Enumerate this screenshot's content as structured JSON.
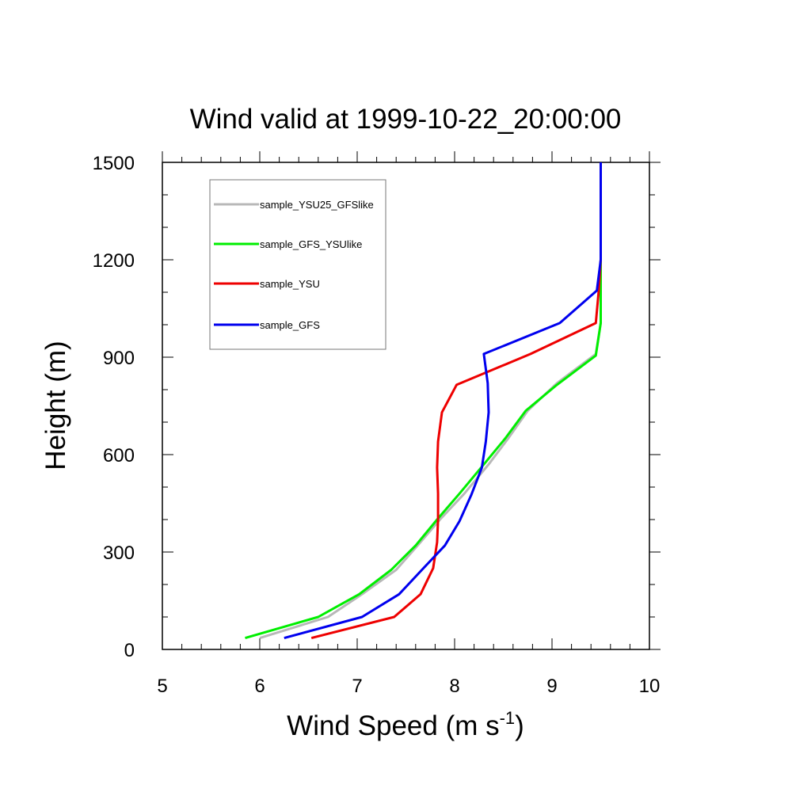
{
  "chart_data": {
    "type": "line",
    "title": "Wind valid at 1999-10-22_20:00:00",
    "xlabel": "Wind Speed (m s",
    "xlabel_sup": "-1",
    "xlabel_end": ")",
    "ylabel": "Height (m)",
    "xlim": [
      5,
      10
    ],
    "ylim": [
      0,
      1500
    ],
    "xticks": [
      "5",
      "6",
      "7",
      "8",
      "9",
      "10"
    ],
    "yticks": [
      "0",
      "300",
      "600",
      "900",
      "1200",
      "1500"
    ],
    "grid": false,
    "legend_position": "top-left",
    "series": [
      {
        "name": "sample_YSU25_GFSlike",
        "color": "#b8b8b8",
        "points": [
          [
            6.0,
            35
          ],
          [
            6.7,
            100
          ],
          [
            7.05,
            170
          ],
          [
            7.4,
            245
          ],
          [
            7.62,
            320
          ],
          [
            7.85,
            400
          ],
          [
            8.1,
            480
          ],
          [
            8.35,
            570
          ],
          [
            8.55,
            650
          ],
          [
            8.75,
            735
          ],
          [
            9.05,
            820
          ],
          [
            9.45,
            910
          ],
          [
            9.5,
            1005
          ],
          [
            9.5,
            1105
          ],
          [
            9.5,
            1200
          ],
          [
            9.5,
            1500
          ]
        ]
      },
      {
        "name": "sample_GFS_YSUlike",
        "color": "#00ee00",
        "points": [
          [
            5.85,
            35
          ],
          [
            6.6,
            100
          ],
          [
            7.02,
            170
          ],
          [
            7.35,
            245
          ],
          [
            7.6,
            320
          ],
          [
            7.82,
            400
          ],
          [
            8.05,
            480
          ],
          [
            8.3,
            570
          ],
          [
            8.52,
            650
          ],
          [
            8.73,
            735
          ],
          [
            9.05,
            815
          ],
          [
            9.45,
            905
          ],
          [
            9.5,
            1005
          ],
          [
            9.5,
            1105
          ],
          [
            9.5,
            1200
          ],
          [
            9.5,
            1500
          ]
        ]
      },
      {
        "name": "sample_YSU",
        "color": "#ee0000",
        "points": [
          [
            6.53,
            35
          ],
          [
            7.38,
            100
          ],
          [
            7.65,
            170
          ],
          [
            7.78,
            250
          ],
          [
            7.82,
            330
          ],
          [
            7.83,
            400
          ],
          [
            7.83,
            480
          ],
          [
            7.82,
            560
          ],
          [
            7.83,
            640
          ],
          [
            7.87,
            730
          ],
          [
            8.02,
            815
          ],
          [
            8.78,
            910
          ],
          [
            9.45,
            1005
          ],
          [
            9.48,
            1105
          ],
          [
            9.5,
            1200
          ],
          [
            9.5,
            1500
          ]
        ]
      },
      {
        "name": "sample_GFS",
        "color": "#0000ee",
        "points": [
          [
            6.25,
            35
          ],
          [
            7.05,
            100
          ],
          [
            7.43,
            170
          ],
          [
            7.68,
            250
          ],
          [
            7.9,
            320
          ],
          [
            8.05,
            395
          ],
          [
            8.17,
            475
          ],
          [
            8.28,
            560
          ],
          [
            8.32,
            640
          ],
          [
            8.35,
            730
          ],
          [
            8.34,
            820
          ],
          [
            8.3,
            910
          ],
          [
            9.08,
            1005
          ],
          [
            9.46,
            1105
          ],
          [
            9.5,
            1200
          ],
          [
            9.5,
            1500
          ]
        ]
      }
    ]
  }
}
